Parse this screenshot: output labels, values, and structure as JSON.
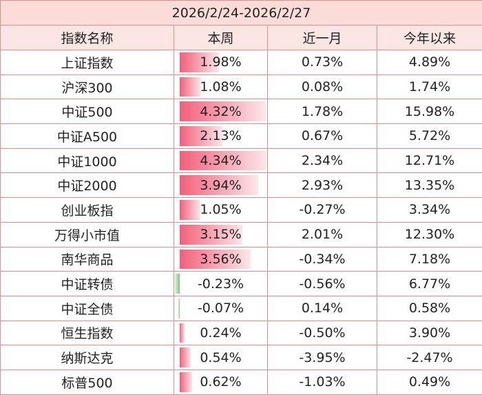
{
  "title": "2026/2/24-2026/2/27",
  "table": {
    "header": [
      "指数名称",
      "本周",
      "近一月",
      "今年以来"
    ],
    "rows": [
      [
        "上证指数",
        "1.98%",
        "0.73%",
        "4.89%"
      ],
      [
        "沪深300",
        "1.08%",
        "0.08%",
        "1.74%"
      ],
      [
        "中证500",
        "4.32%",
        "1.78%",
        "15.98%"
      ],
      [
        "中证A500",
        "2.13%",
        "0.67%",
        "5.72%"
      ],
      [
        "中证1000",
        "4.34%",
        "2.34%",
        "12.71%"
      ],
      [
        "中证2000",
        "3.94%",
        "2.93%",
        "13.35%"
      ],
      [
        "创业板指",
        "1.05%",
        "-0.27%",
        "3.34%"
      ],
      [
        "万得小市值",
        "3.15%",
        "2.01%",
        "12.30%"
      ],
      [
        "南华商品",
        "3.56%",
        "-0.34%",
        "7.18%"
      ],
      [
        "中证转债",
        "-0.23%",
        "-0.56%",
        "6.77%"
      ],
      [
        "中证全债",
        "-0.07%",
        "0.14%",
        "0.58%"
      ],
      [
        "恒生指数",
        "0.24%",
        "-0.50%",
        "3.90%"
      ],
      [
        "纳斯达克",
        "0.54%",
        "-3.95%",
        "-2.47%"
      ],
      [
        "标普500",
        "0.62%",
        "-1.03%",
        "0.49%"
      ]
    ]
  }
}
